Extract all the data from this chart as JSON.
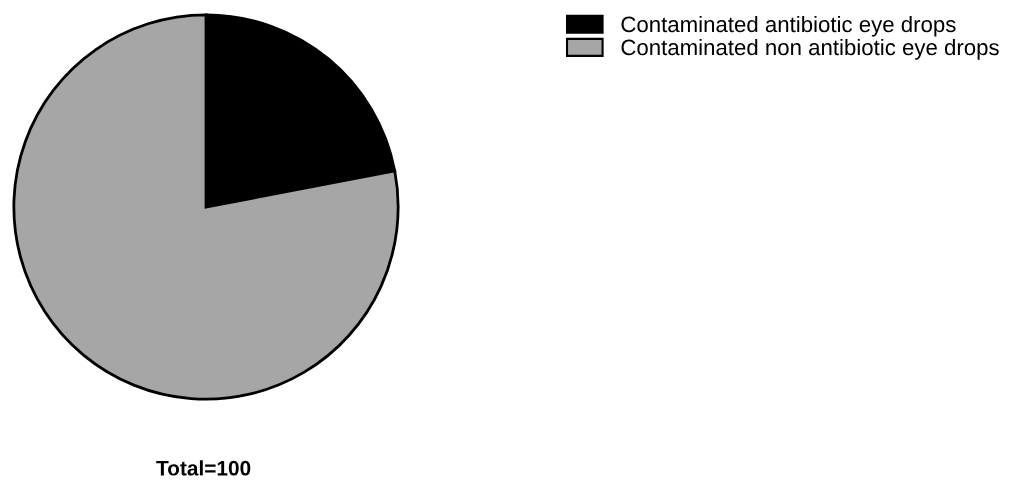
{
  "chart_data": {
    "type": "pie",
    "categories": [
      "Contaminated antibiotic eye drops",
      "Contaminated non antibiotic eye drops"
    ],
    "values": [
      22,
      78
    ],
    "colors": [
      "#000000",
      "#a6a6a6"
    ],
    "legend": "top right",
    "annotations": [
      "Total=100"
    ]
  }
}
